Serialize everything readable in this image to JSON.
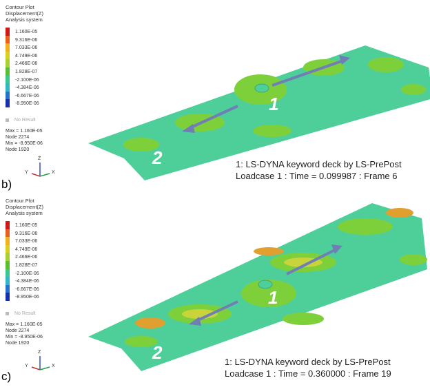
{
  "panels": [
    {
      "id": "b",
      "label": "b)",
      "plot_header": [
        "Contour Plot",
        "Displacement(Z)",
        "Analysis system"
      ],
      "legend_values": [
        "1.160E-05",
        "9.316E-06",
        "7.033E-06",
        "4.749E-06",
        "2.466E-06",
        "1.828E-07",
        "-2.100E-06",
        "-4.384E-06",
        "-6.667E-06",
        "-8.950E-06"
      ],
      "no_result": "No Result",
      "stats": [
        "Max = 1.160E-05",
        "Node 2274",
        "Min = -8.950E-06",
        "Node 1920"
      ],
      "caption_line1": "1: LS-DYNA keyword deck by LS-PrePost",
      "caption_line2": "Loadcase 1 : Time = 0.099987 : Frame 6",
      "marker_1": "1",
      "marker_2": "2",
      "axis": {
        "z": "Z",
        "x": "X",
        "y": "Y"
      }
    },
    {
      "id": "c",
      "label": "c)",
      "plot_header": [
        "Contour Plot",
        "Displacement(Z)",
        "Analysis system"
      ],
      "legend_values": [
        "1.160E-05",
        "9.316E-06",
        "7.033E-06",
        "4.749E-06",
        "2.466E-06",
        "1.828E-07",
        "-2.100E-06",
        "-4.384E-06",
        "-6.667E-06",
        "-8.950E-06"
      ],
      "no_result": "No Result",
      "stats": [
        "Max = 1.160E-05",
        "Node 2274",
        "Min = -8.950E-06",
        "Node 1920"
      ],
      "caption_line1": "1: LS-DYNA keyword deck by LS-PrePost",
      "caption_line2": "Loadcase 1 : Time = 0.360000 : Frame 19",
      "marker_1": "1",
      "marker_2": "2",
      "axis": {
        "z": "Z",
        "x": "X",
        "y": "Y"
      }
    }
  ],
  "colors": {
    "scale": [
      "#d01818",
      "#e8601c",
      "#f0b020",
      "#d8d020",
      "#a8d030",
      "#58c030",
      "#38c890",
      "#30b8c8",
      "#2870d0",
      "#1830a8"
    ],
    "plate": "#4ecf9a",
    "patch_green": "#7ed03a",
    "patch_yellow": "#c9d33a",
    "patch_orange": "#e0a030",
    "arrow": "#6f7fb5"
  }
}
